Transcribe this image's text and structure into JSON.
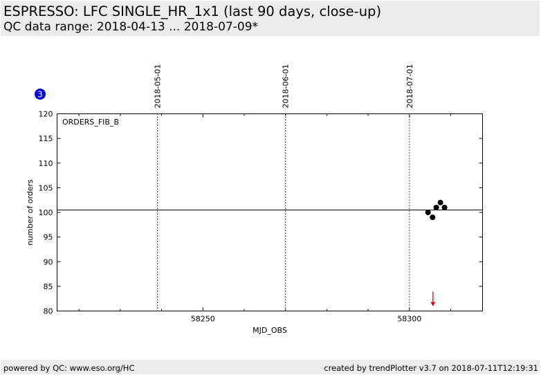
{
  "header": {
    "title": "ESPRESSO: LFC SINGLE_HR_1x1 (last 90 days, close-up)",
    "subtitle": "QC data range: 2018-04-13 ... 2018-07-09*"
  },
  "footer": {
    "left": "powered by QC: www.eso.org/HC",
    "right": "created by trendPlotter v3.7 on 2018-07-11T12:19:31"
  },
  "badge": {
    "label": "3",
    "color": "#0000dd"
  },
  "chart_data": {
    "type": "scatter",
    "panel_label": "ORDERS_FIB_B",
    "xlabel": "MJD_OBS",
    "ylabel": "number of orders",
    "xlim": [
      58214.7,
      58317.7
    ],
    "ylim": [
      80,
      120
    ],
    "x_ticks": [
      58250,
      58300
    ],
    "y_ticks": [
      80,
      85,
      90,
      95,
      100,
      105,
      110,
      115,
      120
    ],
    "reference_line": 100.5,
    "date_markers": [
      {
        "label": "2018-05-01",
        "mjd": 58239
      },
      {
        "label": "2018-06-01",
        "mjd": 58270
      },
      {
        "label": "2018-07-01",
        "mjd": 58300
      }
    ],
    "points": [
      {
        "x": 58304.5,
        "y": 100
      },
      {
        "x": 58305.6,
        "y": 99
      },
      {
        "x": 58306.5,
        "y": 101
      },
      {
        "x": 58307.5,
        "y": 102
      },
      {
        "x": 58308.5,
        "y": 101
      }
    ],
    "outlier_arrow": {
      "x": 58305.7,
      "direction": "down"
    },
    "colors": {
      "points": "#000000",
      "reference_line": "#000000",
      "outlier_arrow": "#dd0000"
    },
    "grid": false
  }
}
